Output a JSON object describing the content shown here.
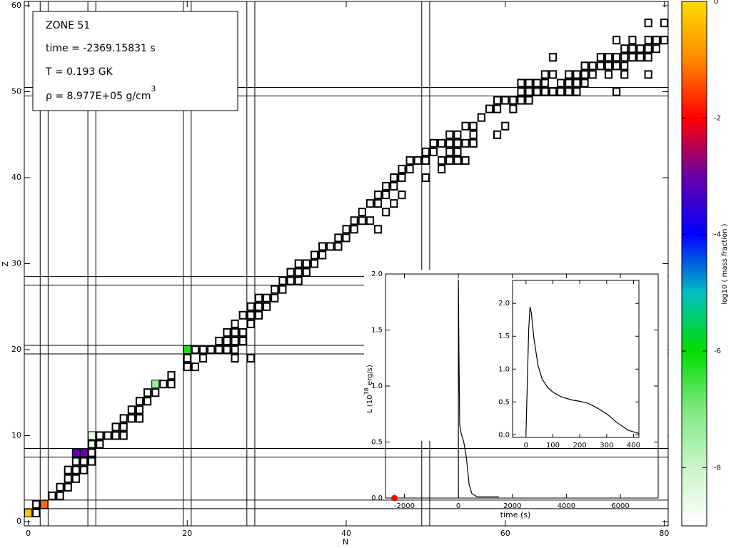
{
  "chart_data": {
    "type": "nuclide_chart",
    "xlabel": "N",
    "ylabel": "Z",
    "xlim": [
      -0.5,
      80.5
    ],
    "ylim": [
      -0.5,
      60.5
    ],
    "xticks": [
      0,
      20,
      40,
      60,
      80
    ],
    "yticks": [
      0,
      10,
      20,
      30,
      40,
      50,
      60
    ],
    "magic_numbers": [
      2,
      8,
      20,
      28,
      50
    ],
    "nuclides": [
      {
        "Z": 1,
        "N": [
          0,
          1
        ]
      },
      {
        "Z": 2,
        "N": [
          1,
          2
        ]
      },
      {
        "Z": 3,
        "N": [
          3,
          4
        ]
      },
      {
        "Z": 4,
        "N": [
          4,
          5
        ]
      },
      {
        "Z": 5,
        "N": [
          5,
          6
        ]
      },
      {
        "Z": 6,
        "N": [
          5,
          6,
          7
        ]
      },
      {
        "Z": 7,
        "N": [
          6,
          7,
          8
        ]
      },
      {
        "Z": 8,
        "N": [
          6,
          7,
          8
        ]
      },
      {
        "Z": 9,
        "N": [
          8,
          9
        ]
      },
      {
        "Z": 10,
        "N": [
          8,
          9,
          10,
          11,
          12
        ]
      },
      {
        "Z": 11,
        "N": [
          11,
          12
        ]
      },
      {
        "Z": 12,
        "N": [
          12,
          13,
          14
        ]
      },
      {
        "Z": 13,
        "N": [
          13,
          14
        ]
      },
      {
        "Z": 14,
        "N": [
          14,
          15
        ]
      },
      {
        "Z": 15,
        "N": [
          15,
          16
        ]
      },
      {
        "Z": 16,
        "N": [
          16,
          17,
          18
        ]
      },
      {
        "Z": 17,
        "N": [
          18
        ]
      },
      {
        "Z": 18,
        "N": [
          20,
          21
        ]
      },
      {
        "Z": 19,
        "N": [
          20,
          22,
          26,
          28
        ]
      },
      {
        "Z": 20,
        "N": [
          20,
          21,
          22,
          23,
          24,
          25,
          26
        ]
      },
      {
        "Z": 21,
        "N": [
          24,
          25,
          26,
          27
        ]
      },
      {
        "Z": 22,
        "N": [
          25,
          26,
          27
        ]
      },
      {
        "Z": 23,
        "N": [
          26,
          28
        ]
      },
      {
        "Z": 24,
        "N": [
          27,
          28,
          29
        ]
      },
      {
        "Z": 25,
        "N": [
          28,
          29,
          30
        ]
      },
      {
        "Z": 26,
        "N": [
          29,
          30,
          31
        ]
      },
      {
        "Z": 27,
        "N": [
          31,
          32
        ]
      },
      {
        "Z": 28,
        "N": [
          32,
          33,
          34
        ]
      },
      {
        "Z": 29,
        "N": [
          33,
          34,
          35
        ]
      },
      {
        "Z": 30,
        "N": [
          34,
          35,
          36
        ]
      },
      {
        "Z": 31,
        "N": [
          36,
          37
        ]
      },
      {
        "Z": 32,
        "N": [
          37,
          38,
          39
        ]
      },
      {
        "Z": 33,
        "N": [
          39,
          40
        ]
      },
      {
        "Z": 34,
        "N": [
          40,
          41,
          44
        ]
      },
      {
        "Z": 35,
        "N": [
          41,
          42,
          43
        ]
      },
      {
        "Z": 36,
        "N": [
          42,
          45
        ]
      },
      {
        "Z": 37,
        "N": [
          43,
          44,
          46
        ]
      },
      {
        "Z": 38,
        "N": [
          44,
          45,
          47
        ]
      },
      {
        "Z": 39,
        "N": [
          45,
          46
        ]
      },
      {
        "Z": 40,
        "N": [
          46,
          47,
          50
        ]
      },
      {
        "Z": 41,
        "N": [
          47,
          48,
          52
        ]
      },
      {
        "Z": 42,
        "N": [
          48,
          49,
          50,
          52,
          53,
          54,
          55
        ]
      },
      {
        "Z": 43,
        "N": [
          50,
          51,
          53,
          54
        ]
      },
      {
        "Z": 44,
        "N": [
          51,
          52,
          53,
          54,
          55,
          56
        ]
      },
      {
        "Z": 45,
        "N": [
          53,
          54,
          56,
          59
        ]
      },
      {
        "Z": 46,
        "N": [
          55,
          56,
          60
        ]
      },
      {
        "Z": 47,
        "N": [
          57
        ]
      },
      {
        "Z": 48,
        "N": [
          58,
          59,
          61
        ]
      },
      {
        "Z": 49,
        "N": [
          59,
          60,
          61,
          62,
          63
        ]
      },
      {
        "Z": 50,
        "N": [
          62,
          63,
          64,
          65,
          66,
          67,
          68,
          69,
          74
        ]
      },
      {
        "Z": 51,
        "N": [
          62,
          63,
          64,
          65,
          67,
          68,
          69,
          70
        ]
      },
      {
        "Z": 52,
        "N": [
          65,
          66,
          68,
          69,
          70,
          71,
          73,
          75,
          78
        ]
      },
      {
        "Z": 53,
        "N": [
          70,
          71,
          72,
          73,
          74,
          75
        ]
      },
      {
        "Z": 54,
        "N": [
          66,
          72,
          73,
          74,
          75,
          76,
          77,
          78
        ]
      },
      {
        "Z": 55,
        "N": [
          75,
          76,
          77,
          78,
          79
        ]
      },
      {
        "Z": 56,
        "N": [
          74,
          76,
          78,
          79,
          80
        ]
      },
      {
        "Z": 58,
        "N": [
          78,
          80
        ]
      }
    ],
    "abundant": {
      "N": [
        0,
        2,
        6,
        7,
        8,
        16,
        20
      ],
      "Z": [
        1,
        2,
        8,
        8,
        10,
        16,
        20
      ],
      "log_mass_fraction": [
        -0.3,
        -1.2,
        -3.1,
        -3.0,
        -8.5,
        -7.3,
        -6.2
      ]
    },
    "colorbar": {
      "label": "log10 ( mass fraction )",
      "zlim": [
        -9,
        0
      ],
      "ticks": [
        0,
        -2,
        -4,
        -6,
        -8
      ],
      "colormap": [
        "#ffffff",
        "#c8f5c8",
        "#80e880",
        "#00dd00",
        "#00c0c0",
        "#0000ff",
        "#6a00a8",
        "#ff0000",
        "#ff8800",
        "#ffdd00"
      ]
    },
    "info": {
      "zone": "ZONE 51",
      "time": "time =  -2369.15831 s",
      "temperature": "T = 0.193 GK",
      "density": "ρ = 8.977E+05 g/cm",
      "density_exponent": "3"
    },
    "inset": {
      "type": "line",
      "xlabel": "time (s)",
      "ylabel": "L (10",
      "ylabel_exponent": "38",
      "ylabel_suffix": " erg/s)",
      "xlim": [
        -2700,
        7400
      ],
      "ylim": [
        0,
        2
      ],
      "xticks": [
        -2000,
        0,
        2000,
        4000,
        6000
      ],
      "yticks": [
        {
          "value": 0,
          "label": "0.0"
        },
        {
          "value": 0.5,
          "label": "0.5"
        },
        {
          "value": 1,
          "label": "1.0"
        },
        {
          "value": 1.5,
          "label": "1.5"
        },
        {
          "value": 2,
          "label": "2.0"
        }
      ],
      "x": [
        0,
        0,
        20,
        50,
        100,
        200,
        300,
        400,
        500,
        700,
        1000,
        1500
      ],
      "y": [
        0,
        1.95,
        1.3,
        0.65,
        0.58,
        0.5,
        0.35,
        0.12,
        0.04,
        0.01,
        0.01,
        0.01
      ],
      "marker": {
        "x": -2369.15831,
        "y": 0,
        "color": "#ff0000"
      },
      "zoom": {
        "type": "line",
        "xlim": [
          -50,
          420
        ],
        "ylim": [
          -0.04,
          2.35
        ],
        "xticks": [
          0,
          100,
          200,
          300,
          400
        ],
        "yticks": [
          {
            "value": 0,
            "label": "0.0"
          },
          {
            "value": 0.5,
            "label": "0.5"
          },
          {
            "value": 1,
            "label": "1.0"
          },
          {
            "value": 1.5,
            "label": "1.5"
          },
          {
            "value": 2,
            "label": "2.0"
          }
        ],
        "x": [
          0,
          5,
          10,
          15,
          20,
          30,
          45,
          60,
          80,
          100,
          130,
          170,
          200,
          230,
          260,
          300,
          340,
          380,
          420
        ],
        "y": [
          0,
          0.8,
          1.6,
          1.95,
          1.85,
          1.45,
          1.05,
          0.85,
          0.72,
          0.65,
          0.58,
          0.53,
          0.51,
          0.48,
          0.42,
          0.32,
          0.18,
          0.07,
          0.02
        ]
      }
    }
  }
}
